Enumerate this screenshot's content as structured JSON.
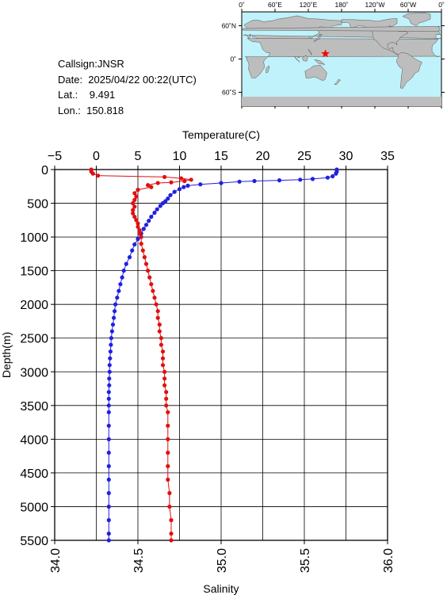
{
  "info": {
    "callsign": "Callsign:JNSR",
    "date": "Date:  2025/04/22 00:22(UTC)",
    "lat": "Lat.:    9.491",
    "lon": "Lon.:  150.818"
  },
  "map": {
    "top_labels": [
      "0˚",
      "60˚E",
      "120˚E",
      "180˚",
      "120˚W",
      "60˚W",
      "0˚"
    ],
    "left_labels": [
      "60˚N",
      "0˚",
      "60˚S"
    ],
    "ocean_color": "#bff2fa",
    "land_color": "#bdbdbd",
    "marker": {
      "lat": 9.491,
      "lon": 150.818,
      "color": "#ff0000",
      "symbol": "star"
    }
  },
  "chart_data": {
    "type": "line",
    "top_axis": {
      "label": "Temperature(C)",
      "ticks": [
        -5,
        0,
        5,
        10,
        15,
        20,
        25,
        30,
        35
      ],
      "range": [
        -5,
        35
      ]
    },
    "bottom_axis": {
      "label": "Salinity",
      "ticks": [
        "34.0",
        "34.5",
        "35.0",
        "35.5",
        "36.0"
      ],
      "range": [
        34.0,
        36.0
      ]
    },
    "y_axis": {
      "label": "Depth(m)",
      "ticks": [
        0,
        500,
        1000,
        1500,
        2000,
        2500,
        3000,
        3500,
        4000,
        4500,
        5000,
        5500
      ],
      "range": [
        0,
        5500
      ],
      "inverted": true
    },
    "grid": true,
    "series": [
      {
        "quantity": "temperature",
        "color": "#2020e0",
        "points": [
          [
            28.9,
            0
          ],
          [
            28.9,
            30
          ],
          [
            28.8,
            60
          ],
          [
            28.4,
            100
          ],
          [
            27.8,
            120
          ],
          [
            26.0,
            140
          ],
          [
            24.5,
            150
          ],
          [
            22.0,
            160
          ],
          [
            19.0,
            170
          ],
          [
            17.2,
            180
          ],
          [
            15.0,
            200
          ],
          [
            12.5,
            220
          ],
          [
            11.0,
            240
          ],
          [
            10.5,
            260
          ],
          [
            10.0,
            290
          ],
          [
            9.4,
            330
          ],
          [
            8.9,
            380
          ],
          [
            8.6,
            430
          ],
          [
            8.3,
            470
          ],
          [
            8.0,
            500
          ],
          [
            7.7,
            540
          ],
          [
            7.3,
            590
          ],
          [
            7.0,
            640
          ],
          [
            6.6,
            700
          ],
          [
            6.3,
            760
          ],
          [
            6.0,
            820
          ],
          [
            5.7,
            880
          ],
          [
            5.4,
            950
          ],
          [
            5.0,
            1030
          ],
          [
            4.6,
            1110
          ],
          [
            4.3,
            1200
          ],
          [
            4.0,
            1300
          ],
          [
            3.6,
            1400
          ],
          [
            3.3,
            1500
          ],
          [
            3.1,
            1600
          ],
          [
            2.9,
            1700
          ],
          [
            2.7,
            1800
          ],
          [
            2.5,
            1900
          ],
          [
            2.3,
            2000
          ],
          [
            2.2,
            2100
          ],
          [
            2.1,
            2200
          ],
          [
            2.0,
            2300
          ],
          [
            1.9,
            2400
          ],
          [
            1.8,
            2500
          ],
          [
            1.75,
            2600
          ],
          [
            1.7,
            2700
          ],
          [
            1.65,
            2800
          ],
          [
            1.6,
            2900
          ],
          [
            1.6,
            3000
          ],
          [
            1.55,
            3100
          ],
          [
            1.55,
            3200
          ],
          [
            1.5,
            3300
          ],
          [
            1.5,
            3400
          ],
          [
            1.5,
            3500
          ],
          [
            1.5,
            3600
          ],
          [
            1.5,
            3800
          ],
          [
            1.5,
            4000
          ],
          [
            1.5,
            4200
          ],
          [
            1.5,
            4400
          ],
          [
            1.5,
            4600
          ],
          [
            1.5,
            4800
          ],
          [
            1.5,
            5000
          ],
          [
            1.5,
            5200
          ],
          [
            1.5,
            5400
          ],
          [
            1.5,
            5500
          ]
        ]
      },
      {
        "quantity": "salinity",
        "color": "#e01010",
        "points": [
          [
            34.22,
            0
          ],
          [
            34.22,
            30
          ],
          [
            34.23,
            60
          ],
          [
            34.26,
            90
          ],
          [
            34.66,
            110
          ],
          [
            34.76,
            130
          ],
          [
            34.82,
            150
          ],
          [
            34.78,
            170
          ],
          [
            34.7,
            190
          ],
          [
            34.62,
            200
          ],
          [
            34.56,
            230
          ],
          [
            34.58,
            260
          ],
          [
            34.5,
            300
          ],
          [
            34.48,
            350
          ],
          [
            34.49,
            400
          ],
          [
            34.48,
            450
          ],
          [
            34.47,
            500
          ],
          [
            34.48,
            550
          ],
          [
            34.47,
            600
          ],
          [
            34.47,
            650
          ],
          [
            34.48,
            700
          ],
          [
            34.49,
            750
          ],
          [
            34.5,
            800
          ],
          [
            34.5,
            850
          ],
          [
            34.51,
            900
          ],
          [
            34.51,
            950
          ],
          [
            34.52,
            1000
          ],
          [
            34.52,
            1100
          ],
          [
            34.53,
            1200
          ],
          [
            34.54,
            1300
          ],
          [
            34.55,
            1400
          ],
          [
            34.56,
            1500
          ],
          [
            34.57,
            1600
          ],
          [
            34.58,
            1700
          ],
          [
            34.59,
            1800
          ],
          [
            34.6,
            1900
          ],
          [
            34.61,
            2000
          ],
          [
            34.62,
            2100
          ],
          [
            34.62,
            2200
          ],
          [
            34.63,
            2300
          ],
          [
            34.63,
            2400
          ],
          [
            34.64,
            2500
          ],
          [
            34.64,
            2600
          ],
          [
            34.65,
            2700
          ],
          [
            34.65,
            2800
          ],
          [
            34.65,
            2900
          ],
          [
            34.66,
            3000
          ],
          [
            34.66,
            3100
          ],
          [
            34.66,
            3200
          ],
          [
            34.67,
            3300
          ],
          [
            34.67,
            3400
          ],
          [
            34.67,
            3500
          ],
          [
            34.68,
            3600
          ],
          [
            34.68,
            3800
          ],
          [
            34.68,
            4000
          ],
          [
            34.68,
            4200
          ],
          [
            34.68,
            4400
          ],
          [
            34.68,
            4600
          ],
          [
            34.69,
            4800
          ],
          [
            34.69,
            5000
          ],
          [
            34.7,
            5200
          ],
          [
            34.7,
            5400
          ],
          [
            34.7,
            5500
          ]
        ]
      }
    ]
  }
}
